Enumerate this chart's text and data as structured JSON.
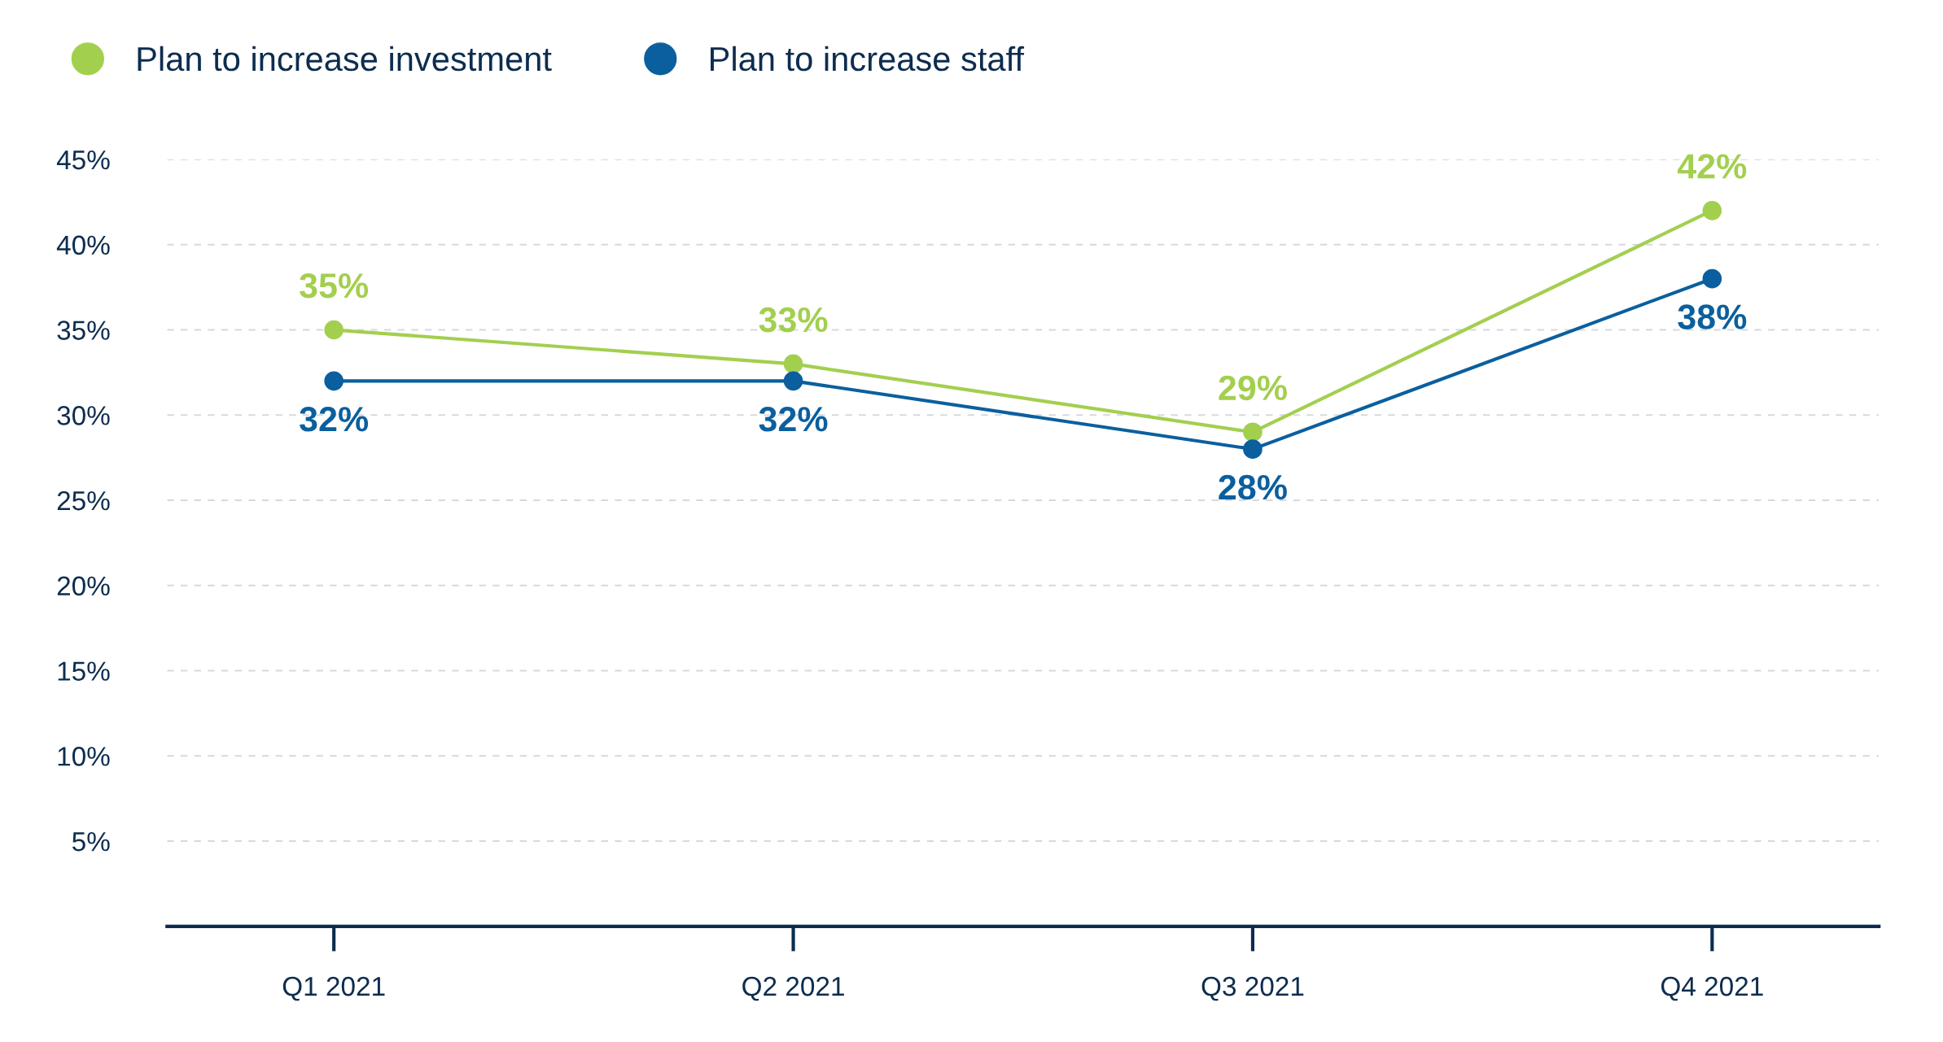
{
  "chart_data": {
    "type": "line",
    "categories": [
      "Q1 2021",
      "Q2 2021",
      "Q3 2021",
      "Q4 2021"
    ],
    "series": [
      {
        "name": "Plan to increase investment",
        "color": "#a3cf4f",
        "values": [
          35,
          33,
          29,
          42
        ]
      },
      {
        "name": "Plan to increase staff",
        "color": "#0b5f9e",
        "values": [
          32,
          32,
          28,
          38
        ]
      }
    ],
    "ylim": [
      0,
      45
    ],
    "yticks": [
      {
        "value": 5,
        "label": "5%"
      },
      {
        "value": 10,
        "label": "10%"
      },
      {
        "value": 15,
        "label": "15%"
      },
      {
        "value": 20,
        "label": "20%"
      },
      {
        "value": 25,
        "label": "25%"
      },
      {
        "value": 30,
        "label": "30%"
      },
      {
        "value": 35,
        "label": "35%"
      },
      {
        "value": 40,
        "label": "40%"
      },
      {
        "value": 45,
        "label": "45%"
      }
    ],
    "grid": "y",
    "legend": "top left",
    "marker": "circle",
    "line_style": "solid",
    "value_labels": [
      [
        "35%",
        "33%",
        "29%",
        "42%"
      ],
      [
        "32%",
        "32%",
        "28%",
        "38%"
      ]
    ]
  }
}
